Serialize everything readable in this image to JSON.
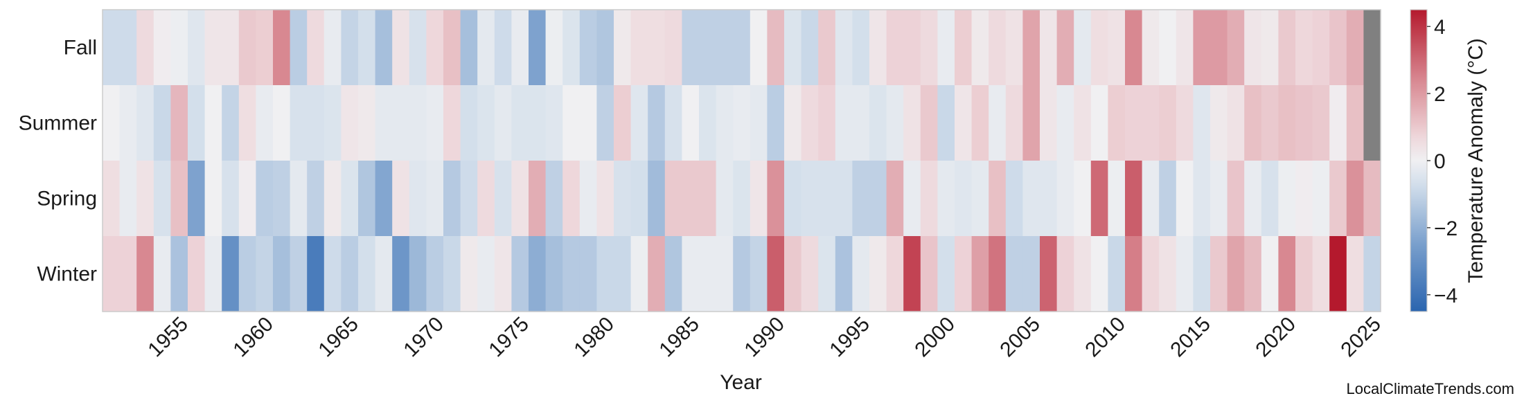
{
  "chart_data": {
    "type": "heatmap",
    "title": "",
    "xlabel": "Year",
    "ylabel": "",
    "rows": [
      "Fall",
      "Summer",
      "Spring",
      "Winter"
    ],
    "years": [
      1951,
      1952,
      1953,
      1954,
      1955,
      1956,
      1957,
      1958,
      1959,
      1960,
      1961,
      1962,
      1963,
      1964,
      1965,
      1966,
      1967,
      1968,
      1969,
      1970,
      1971,
      1972,
      1973,
      1974,
      1975,
      1976,
      1977,
      1978,
      1979,
      1980,
      1981,
      1982,
      1983,
      1984,
      1985,
      1986,
      1987,
      1988,
      1989,
      1990,
      1991,
      1992,
      1993,
      1994,
      1995,
      1996,
      1997,
      1998,
      1999,
      2000,
      2001,
      2002,
      2003,
      2004,
      2005,
      2006,
      2007,
      2008,
      2009,
      2010,
      2011,
      2012,
      2013,
      2014,
      2015,
      2016,
      2017,
      2018,
      2019,
      2020,
      2021,
      2022,
      2023,
      2024,
      2025
    ],
    "x_ticks": [
      1955,
      1960,
      1965,
      1970,
      1975,
      1980,
      1985,
      1990,
      1995,
      2000,
      2005,
      2010,
      2015,
      2020,
      2025
    ],
    "values": [
      [
        -0.8,
        -0.8,
        0.6,
        0.1,
        -0.1,
        -0.4,
        0.3,
        0.3,
        1.0,
        0.9,
        2.4,
        -1.2,
        0.6,
        -0.2,
        -1.0,
        -0.7,
        -1.6,
        0.4,
        -0.6,
        0.7,
        1.2,
        -1.6,
        -0.3,
        -0.8,
        -0.2,
        -2.4,
        -0.1,
        -0.5,
        -1.2,
        -1.4,
        0.2,
        0.5,
        0.5,
        0.6,
        -1.1,
        -1.1,
        -1.1,
        -1.1,
        0.0,
        1.3,
        -0.5,
        -0.9,
        1.0,
        -0.4,
        -0.7,
        0.3,
        0.8,
        0.8,
        0.6,
        -0.2,
        0.9,
        0.2,
        0.6,
        0.4,
        1.8,
        0.3,
        1.6,
        -0.3,
        0.5,
        0.4,
        2.4,
        0.2,
        0.0,
        0.3,
        2.0,
        2.0,
        1.6,
        0.3,
        0.2,
        1.0,
        0.7,
        0.8,
        1.1,
        1.6,
        null
      ],
      [
        0.0,
        -0.2,
        -0.4,
        -0.9,
        1.4,
        -0.7,
        0.0,
        -1.0,
        0.5,
        -0.2,
        0.0,
        -0.6,
        -0.6,
        -0.5,
        0.3,
        0.2,
        -0.3,
        -0.3,
        -0.3,
        -0.2,
        0.7,
        -0.7,
        -0.5,
        -0.3,
        -0.5,
        -0.5,
        -0.4,
        0.0,
        0.0,
        -1.1,
        0.9,
        -0.4,
        -1.3,
        -0.6,
        0.0,
        -0.5,
        -0.3,
        -0.2,
        -0.3,
        -1.2,
        0.2,
        0.6,
        0.8,
        -0.3,
        -0.3,
        -0.5,
        -0.3,
        0.4,
        1.0,
        -0.9,
        0.3,
        0.9,
        -0.2,
        0.6,
        1.8,
        0.3,
        -0.2,
        0.4,
        0.0,
        0.9,
        0.8,
        0.8,
        0.9,
        0.6,
        -0.4,
        0.2,
        0.4,
        1.2,
        1.0,
        1.2,
        1.1,
        1.0,
        0.1,
        1.2,
        null
      ],
      [
        0.5,
        -0.2,
        0.4,
        -0.6,
        1.2,
        -2.4,
        0.0,
        -0.6,
        0.1,
        -1.2,
        -1.1,
        -0.3,
        -1.1,
        0.2,
        -0.5,
        -1.4,
        -2.3,
        0.4,
        -0.4,
        -0.3,
        -1.3,
        -0.8,
        0.6,
        -0.6,
        0.4,
        1.6,
        -1.1,
        0.7,
        -0.2,
        0.4,
        -0.6,
        -0.7,
        -1.7,
        1.0,
        1.0,
        1.0,
        -0.3,
        -0.5,
        0.3,
        2.2,
        -0.7,
        -0.6,
        -0.6,
        -0.6,
        -1.1,
        -1.1,
        1.6,
        -0.2,
        0.6,
        -0.3,
        -0.4,
        -0.3,
        1.2,
        -0.8,
        -0.4,
        -0.4,
        -0.2,
        0.0,
        3.0,
        -0.1,
        3.2,
        -0.2,
        -1.1,
        0.0,
        -0.4,
        -0.2,
        1.1,
        -0.2,
        -0.6,
        -0.1,
        0.1,
        -0.1,
        1.0,
        2.2,
        1.3
      ],
      [
        0.8,
        0.8,
        2.4,
        -0.2,
        -1.5,
        0.8,
        -0.2,
        -3.0,
        -1.2,
        -1.0,
        -1.6,
        -1.1,
        -3.7,
        -0.8,
        -1.2,
        -0.7,
        -0.3,
        -2.8,
        -1.8,
        -1.2,
        -0.9,
        0.2,
        -0.2,
        0.3,
        -1.3,
        -2.1,
        -1.6,
        -1.3,
        -1.3,
        -0.9,
        -0.9,
        -0.1,
        1.6,
        -1.4,
        -0.2,
        -0.2,
        -0.2,
        -1.3,
        -1.0,
        3.2,
        1.0,
        0.6,
        -0.5,
        -1.5,
        -0.3,
        0.2,
        0.7,
        3.7,
        1.1,
        -0.7,
        0.8,
        1.9,
        2.8,
        -1.1,
        -1.1,
        3.1,
        0.8,
        0.4,
        0.0,
        -0.9,
        2.6,
        0.7,
        0.4,
        -0.2,
        -0.7,
        1.0,
        1.8,
        1.3,
        0.0,
        2.4,
        0.9,
        0.5,
        4.5,
        0.5,
        -1.0
      ]
    ],
    "missing_color": "#808080",
    "colormap": {
      "name": "RdBu_r",
      "vmin": -4.5,
      "vmax": 4.5
    },
    "colorbar": {
      "label": "Temperature Anomaly (°C)",
      "ticks": [
        4,
        2,
        0,
        -2,
        -4
      ],
      "tick_labels": [
        "4",
        "2",
        "0",
        "−2",
        "−4"
      ]
    },
    "grid": false,
    "legend": "none"
  },
  "watermark": "LocalClimateTrends.com"
}
